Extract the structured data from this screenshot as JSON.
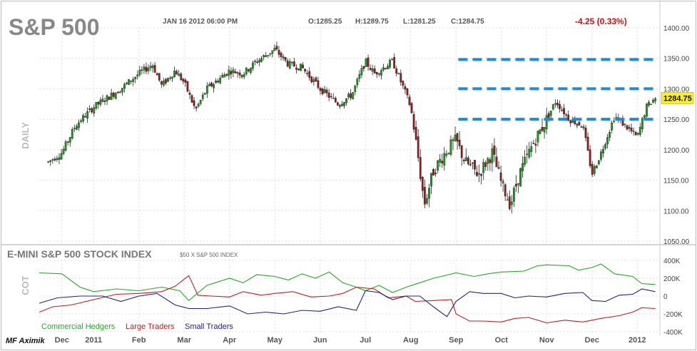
{
  "chart_data": [
    {
      "type": "candlestick",
      "title": "S&P 500",
      "timeframe": "DAILY",
      "date": "JAN 16 2012 06:00 PM",
      "ohlc_text": {
        "open": "O:1285.25",
        "high": "H:1289.75",
        "low": "L:1281.25",
        "close": "C:1284.75"
      },
      "change_text": "-4.25 (0.33%)",
      "last_price": "1284.75",
      "ylim": [
        1050,
        1400
      ],
      "yticks": [
        "1400.00",
        "1350.00",
        "1300.00",
        "1250.00",
        "1200.00",
        "1150.00",
        "1100.00",
        "1050.00"
      ],
      "months": [
        "Dec",
        "2011",
        "Feb",
        "Mar",
        "Apr",
        "May",
        "Jun",
        "Jul",
        "Aug",
        "Sep",
        "Oct",
        "Nov",
        "Dec",
        "2012"
      ],
      "month_pos": [
        0.3,
        1,
        2,
        3,
        4,
        5,
        6,
        7,
        8,
        9,
        10,
        11,
        12,
        13
      ],
      "x_range": [
        -0.2,
        13.5
      ],
      "anchors": [
        [
          0,
          1180
        ],
        [
          0.3,
          1195
        ],
        [
          0.6,
          1240
        ],
        [
          1,
          1270
        ],
        [
          1.3,
          1285
        ],
        [
          1.6,
          1300
        ],
        [
          2,
          1325
        ],
        [
          2.3,
          1340
        ],
        [
          2.5,
          1305
        ],
        [
          2.8,
          1330
        ],
        [
          3,
          1310
        ],
        [
          3.25,
          1265
        ],
        [
          3.5,
          1300
        ],
        [
          4,
          1330
        ],
        [
          4.3,
          1325
        ],
        [
          4.6,
          1345
        ],
        [
          5,
          1365
        ],
        [
          5.3,
          1340
        ],
        [
          5.6,
          1335
        ],
        [
          6,
          1300
        ],
        [
          6.4,
          1275
        ],
        [
          6.7,
          1290
        ],
        [
          7,
          1345
        ],
        [
          7.2,
          1325
        ],
        [
          7.4,
          1335
        ],
        [
          7.6,
          1345
        ],
        [
          7.9,
          1290
        ],
        [
          8,
          1270
        ],
        [
          8.15,
          1195
        ],
        [
          8.3,
          1110
        ],
        [
          8.5,
          1165
        ],
        [
          8.8,
          1200
        ],
        [
          9,
          1215
        ],
        [
          9.2,
          1180
        ],
        [
          9.5,
          1160
        ],
        [
          9.8,
          1195
        ],
        [
          10,
          1145
        ],
        [
          10.2,
          1110
        ],
        [
          10.4,
          1160
        ],
        [
          10.7,
          1210
        ],
        [
          11,
          1250
        ],
        [
          11.2,
          1280
        ],
        [
          11.5,
          1250
        ],
        [
          11.8,
          1240
        ],
        [
          12,
          1160
        ],
        [
          12.2,
          1195
        ],
        [
          12.5,
          1255
        ],
        [
          12.8,
          1235
        ],
        [
          13,
          1220
        ],
        [
          13.2,
          1270
        ],
        [
          13.4,
          1285
        ]
      ],
      "hlines": [
        1348,
        1300,
        1250
      ],
      "hline_start": 9.05
    },
    {
      "type": "line",
      "title": "E-MINI S&P 500 STOCK INDEX",
      "subtitle": "$50 X S&P 500 INDEX",
      "panel_label": "COT",
      "ylim": [
        -400000,
        400000
      ],
      "yticks": [
        "400K",
        "200K",
        "0",
        "-200K",
        "-400K"
      ],
      "series": [
        {
          "name": "Commercial Hedgers",
          "color": "#22aa22",
          "points": [
            [
              -0.2,
              260000
            ],
            [
              0.3,
              250000
            ],
            [
              0.7,
              100000
            ],
            [
              1,
              50000
            ],
            [
              1.5,
              80000
            ],
            [
              2,
              60000
            ],
            [
              2.5,
              100000
            ],
            [
              2.9,
              60000
            ],
            [
              3.1,
              -50000
            ],
            [
              3.5,
              120000
            ],
            [
              4,
              200000
            ],
            [
              4.3,
              150000
            ],
            [
              4.6,
              240000
            ],
            [
              5,
              220000
            ],
            [
              5.3,
              180000
            ],
            [
              5.6,
              250000
            ],
            [
              5.9,
              200000
            ],
            [
              6.2,
              270000
            ],
            [
              6.5,
              150000
            ],
            [
              6.8,
              100000
            ],
            [
              7,
              60000
            ],
            [
              7.3,
              120000
            ],
            [
              7.6,
              40000
            ],
            [
              7.9,
              100000
            ],
            [
              8.2,
              150000
            ],
            [
              8.5,
              200000
            ],
            [
              9,
              260000
            ],
            [
              9.4,
              220000
            ],
            [
              9.7,
              250000
            ],
            [
              10,
              270000
            ],
            [
              10.5,
              280000
            ],
            [
              10.8,
              340000
            ],
            [
              11,
              350000
            ],
            [
              11.5,
              340000
            ],
            [
              11.7,
              290000
            ],
            [
              12,
              320000
            ],
            [
              12.2,
              360000
            ],
            [
              12.5,
              250000
            ],
            [
              12.9,
              220000
            ],
            [
              13.1,
              140000
            ],
            [
              13.4,
              130000
            ]
          ]
        },
        {
          "name": "Large Traders",
          "color": "#bb2222",
          "points": [
            [
              -0.2,
              -180000
            ],
            [
              0.1,
              -120000
            ],
            [
              0.5,
              -100000
            ],
            [
              1,
              -40000
            ],
            [
              1.5,
              20000
            ],
            [
              2,
              30000
            ],
            [
              2.5,
              50000
            ],
            [
              2.8,
              110000
            ],
            [
              3.1,
              230000
            ],
            [
              3.3,
              10000
            ],
            [
              3.6,
              0
            ],
            [
              4,
              -10000
            ],
            [
              4.3,
              50000
            ],
            [
              4.7,
              10000
            ],
            [
              5,
              30000
            ],
            [
              5.4,
              50000
            ],
            [
              5.8,
              -10000
            ],
            [
              6.2,
              0
            ],
            [
              6.5,
              30000
            ],
            [
              6.8,
              100000
            ],
            [
              7.2,
              80000
            ],
            [
              7.5,
              -20000
            ],
            [
              7.9,
              0
            ],
            [
              8.1,
              -60000
            ],
            [
              8.5,
              -50000
            ],
            [
              8.9,
              -40000
            ],
            [
              9,
              -200000
            ],
            [
              9.3,
              -280000
            ],
            [
              9.6,
              -280000
            ],
            [
              10,
              -290000
            ],
            [
              10.3,
              -250000
            ],
            [
              10.6,
              -240000
            ],
            [
              11,
              -300000
            ],
            [
              11.4,
              -270000
            ],
            [
              11.8,
              -290000
            ],
            [
              12.2,
              -250000
            ],
            [
              12.6,
              -220000
            ],
            [
              12.9,
              -180000
            ],
            [
              13.1,
              -130000
            ],
            [
              13.4,
              -140000
            ]
          ]
        },
        {
          "name": "Small Traders",
          "color": "#222288",
          "points": [
            [
              -0.2,
              -80000
            ],
            [
              0.2,
              -20000
            ],
            [
              0.7,
              0
            ],
            [
              1.2,
              0
            ],
            [
              1.6,
              -60000
            ],
            [
              2,
              0
            ],
            [
              2.4,
              30000
            ],
            [
              2.8,
              -100000
            ],
            [
              3.1,
              -140000
            ],
            [
              3.5,
              -140000
            ],
            [
              4,
              -110000
            ],
            [
              4.4,
              -200000
            ],
            [
              4.8,
              -180000
            ],
            [
              5.2,
              -200000
            ],
            [
              5.6,
              -160000
            ],
            [
              6,
              -170000
            ],
            [
              6.4,
              -120000
            ],
            [
              6.8,
              -160000
            ],
            [
              7,
              60000
            ],
            [
              7.3,
              40000
            ],
            [
              7.6,
              -40000
            ],
            [
              7.9,
              0
            ],
            [
              8.2,
              0
            ],
            [
              8.5,
              -120000
            ],
            [
              8.8,
              -230000
            ],
            [
              9,
              -60000
            ],
            [
              9.3,
              50000
            ],
            [
              9.6,
              30000
            ],
            [
              10,
              30000
            ],
            [
              10.3,
              -20000
            ],
            [
              10.6,
              0
            ],
            [
              11,
              -10000
            ],
            [
              11.4,
              30000
            ],
            [
              11.8,
              40000
            ],
            [
              12,
              -50000
            ],
            [
              12.3,
              -60000
            ],
            [
              12.6,
              10000
            ],
            [
              12.9,
              20000
            ],
            [
              13.1,
              80000
            ],
            [
              13.4,
              50000
            ]
          ]
        }
      ]
    }
  ],
  "watermark": "MF Aximik"
}
